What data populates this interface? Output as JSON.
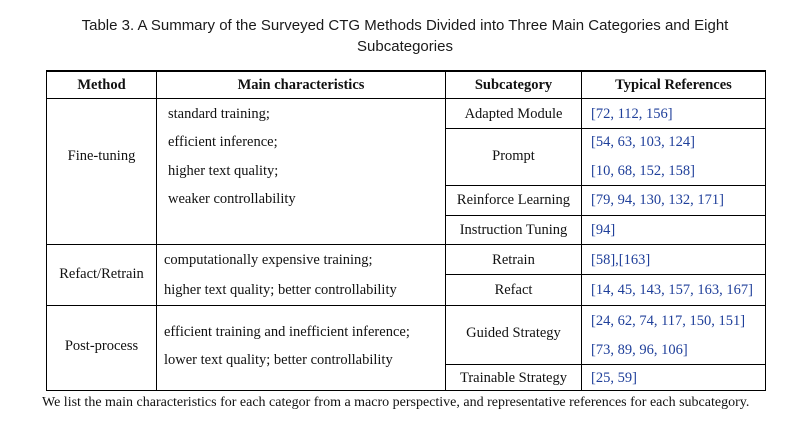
{
  "caption": {
    "line1": "Table 3.  A Summary of the Surveyed CTG Methods Divided into Three Main Categories and Eight",
    "line2": "Subcategories"
  },
  "headers": {
    "method": "Method",
    "characteristics": "Main characteristics",
    "subcategory": "Subcategory",
    "references": "Typical References"
  },
  "groups": [
    {
      "method": "Fine-tuning",
      "characteristics": [
        "standard training;",
        "efficient inference;",
        "higher text quality;",
        "weaker controllability"
      ],
      "subcategories": [
        {
          "name": "Adapted Module",
          "refs": [
            "[72, 112, 156]"
          ]
        },
        {
          "name": "Prompt",
          "refs": [
            "[54, 63, 103, 124]",
            "[10, 68, 152, 158]"
          ]
        },
        {
          "name": "Reinforce Learning",
          "refs": [
            "[79, 94, 130, 132, 171]"
          ]
        },
        {
          "name": "Instruction Tuning",
          "refs": [
            "[94]"
          ]
        }
      ]
    },
    {
      "method": "Refact/Retrain",
      "characteristics": [
        "computationally expensive training;",
        "higher text quality; better controllability"
      ],
      "subcategories": [
        {
          "name": "Retrain",
          "refs": [
            "[58],[163]"
          ]
        },
        {
          "name": "Refact",
          "refs": [
            "[14, 45, 143, 157, 163, 167]"
          ]
        }
      ]
    },
    {
      "method": "Post-process",
      "characteristics": [
        "efficient training and inefficient inference;",
        "lower text quality; better controllability"
      ],
      "subcategories": [
        {
          "name": "Guided Strategy",
          "refs": [
            "[24, 62, 74, 117, 150, 151]",
            "[73, 89, 96, 106]"
          ]
        },
        {
          "name": "Trainable Strategy",
          "refs": [
            "[25, 59]"
          ]
        }
      ]
    }
  ],
  "footnote": "We list the main characteristics for each categor from a macro perspective, and representative references for each subcategory."
}
